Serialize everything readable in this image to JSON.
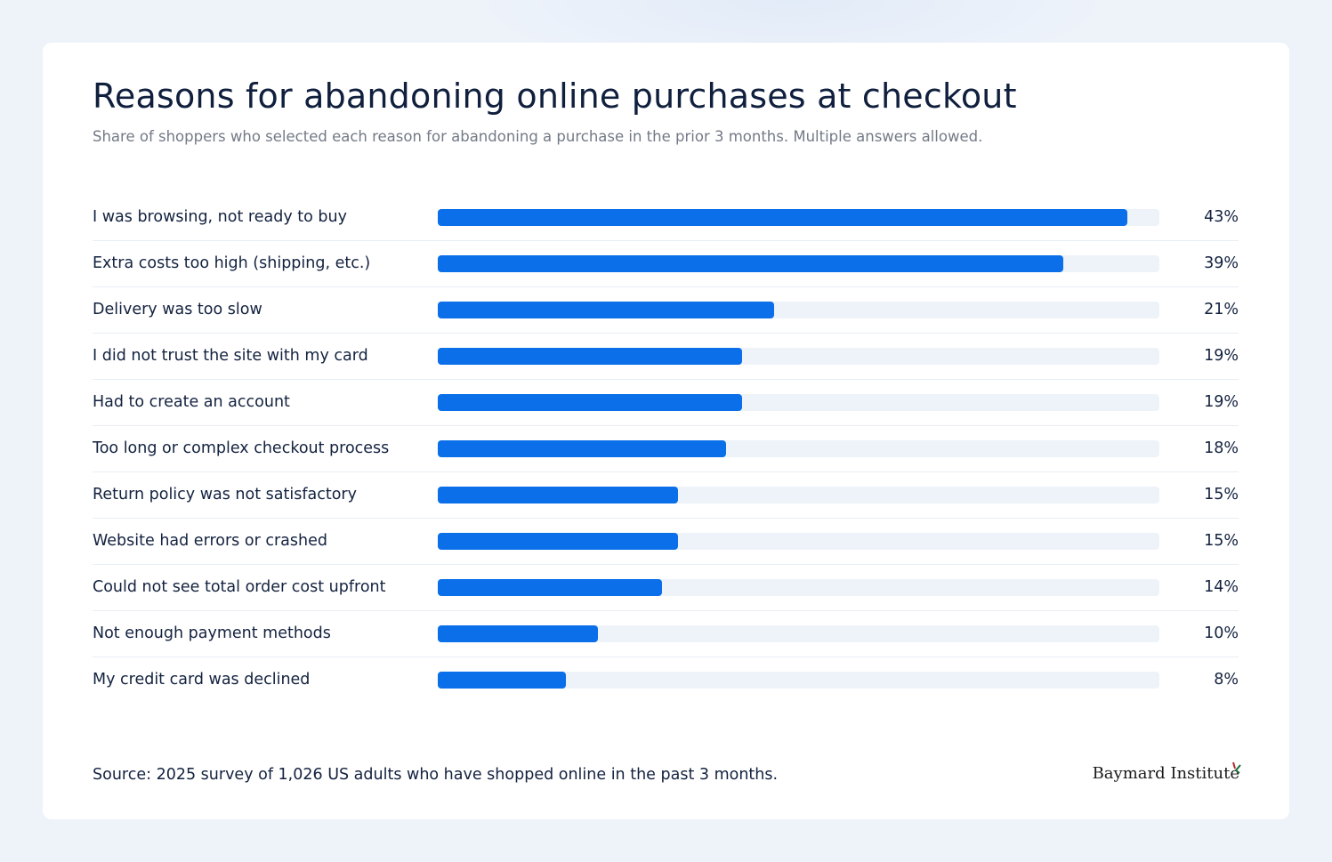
{
  "chart_data": {
    "type": "bar",
    "orientation": "horizontal",
    "title": "Reasons for abandoning online purchases at checkout",
    "subtitle": "Share of shoppers who selected each reason for abandoning a purchase in the prior 3 months. Multiple answers allowed.",
    "categories": [
      "I was browsing, not ready to buy",
      "Extra costs too high (shipping, etc.)",
      "Delivery was too slow",
      "I did not trust the site with my card",
      "Had to create an account",
      "Too long or complex checkout process",
      "Return policy was not satisfactory",
      "Website had errors or crashed",
      "Could not see total order cost upfront",
      "Not enough payment methods",
      "My credit card was declined"
    ],
    "values": [
      43,
      39,
      21,
      19,
      19,
      18,
      15,
      15,
      14,
      10,
      8
    ],
    "value_labels": [
      "43%",
      "39%",
      "21%",
      "19%",
      "19%",
      "18%",
      "15%",
      "15%",
      "14%",
      "10%",
      "8%"
    ],
    "xlim": [
      0,
      45
    ],
    "grid": false,
    "legend": "none",
    "bar_color": "#0a6fe8",
    "track_color": "#eef3fa"
  },
  "footer": {
    "source": "Source: 2025 survey of 1,026 US adults who have shopped online in the past 3 months.",
    "logo_text": "Baymard Institute"
  }
}
